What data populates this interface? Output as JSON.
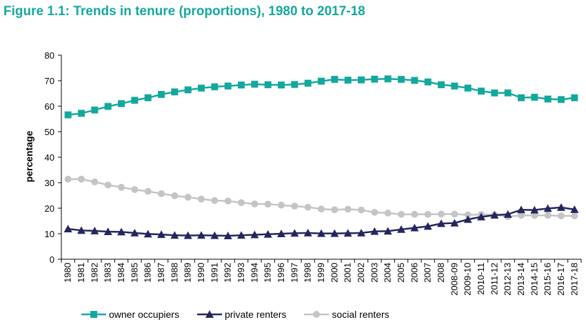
{
  "figure_title": "Figure 1.1: Trends in tenure (proportions), 1980 to 2017-18",
  "chart_data": {
    "type": "line",
    "title": "Figure 1.1: Trends in tenure (proportions), 1980 to 2017-18",
    "xlabel": "",
    "ylabel": "percentage",
    "ylim": [
      0,
      80
    ],
    "yticks": [
      0,
      10,
      20,
      30,
      40,
      50,
      60,
      70,
      80
    ],
    "grid": false,
    "legend_position": "bottom",
    "categories": [
      "1980",
      "1981",
      "1982",
      "1983",
      "1984",
      "1985",
      "1986",
      "1987",
      "1988",
      "1989",
      "1990",
      "1991",
      "1992",
      "1993",
      "1994",
      "1995",
      "1996",
      "1997",
      "1998",
      "1999",
      "2000",
      "2001",
      "2002",
      "2003",
      "2004",
      "2005",
      "2006",
      "2007",
      "2008",
      "2008-09",
      "2009-10",
      "2010-11",
      "2011-12",
      "2012-13",
      "2013-14",
      "2014-15",
      "2015-16",
      "2016-17",
      "2017-18"
    ],
    "series": [
      {
        "name": "owner occupiers",
        "color": "#13a89e",
        "marker": "square",
        "values": [
          56.6,
          57.2,
          58.5,
          59.9,
          61.0,
          62.3,
          63.3,
          64.6,
          65.6,
          66.4,
          67.1,
          67.6,
          67.9,
          68.3,
          68.6,
          68.4,
          68.3,
          68.5,
          69.0,
          69.8,
          70.5,
          70.2,
          70.3,
          70.6,
          70.7,
          70.5,
          70.1,
          69.5,
          68.4,
          67.9,
          67.1,
          65.9,
          65.2,
          65.2,
          63.3,
          63.5,
          62.8,
          62.6,
          63.3
        ]
      },
      {
        "name": "private renters",
        "color": "#23265e",
        "marker": "triangle",
        "values": [
          11.9,
          11.3,
          11.1,
          10.8,
          10.7,
          10.3,
          9.9,
          9.7,
          9.4,
          9.3,
          9.4,
          9.3,
          9.2,
          9.4,
          9.6,
          9.8,
          10.0,
          10.2,
          10.3,
          10.1,
          10.1,
          10.2,
          10.3,
          10.9,
          11.0,
          11.7,
          12.3,
          12.9,
          14.0,
          14.2,
          15.6,
          16.6,
          17.3,
          17.6,
          19.4,
          19.3,
          19.9,
          20.3,
          19.5
        ]
      },
      {
        "name": "social renters",
        "color": "#c4c4c4",
        "marker": "circle",
        "values": [
          31.4,
          31.4,
          30.3,
          29.1,
          28.2,
          27.3,
          26.6,
          25.7,
          24.9,
          24.3,
          23.6,
          23.0,
          22.8,
          22.2,
          21.7,
          21.6,
          21.2,
          20.8,
          20.4,
          19.7,
          19.4,
          19.6,
          19.3,
          18.4,
          18.1,
          17.6,
          17.6,
          17.6,
          17.7,
          17.7,
          17.4,
          17.5,
          17.4,
          16.7,
          17.2,
          17.2,
          17.2,
          17.0,
          17.0
        ]
      }
    ]
  }
}
